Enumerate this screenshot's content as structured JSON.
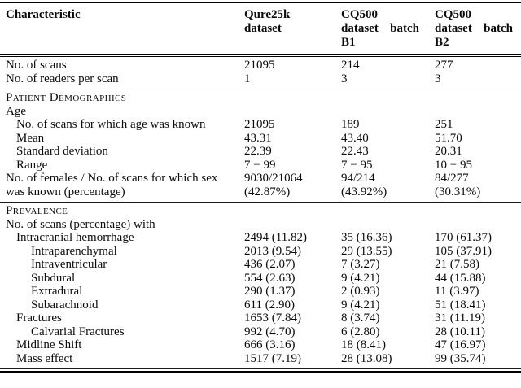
{
  "page": {
    "background_color": "#ffffff",
    "text_color": "#0b0b0b",
    "rule_color": "#000000"
  },
  "table": {
    "header": {
      "characteristic": "Characteristic",
      "columns": [
        {
          "name": "qure25k",
          "label": "Qure25k dataset",
          "lines": [
            "Qure25k",
            "dataset"
          ],
          "justify": false
        },
        {
          "name": "cq500-b1",
          "label": "CQ500 dataset batch B1",
          "lines": [
            "CQ500",
            "dataset batch",
            "B1"
          ],
          "justify": true
        },
        {
          "name": "cq500-b2",
          "label": "CQ500 dataset batch B2",
          "lines": [
            "CQ500",
            "dataset batch",
            "B2"
          ],
          "justify": true
        }
      ]
    },
    "sections": [
      {
        "title": "",
        "rows": [
          {
            "label": "No. of scans",
            "indent": 0,
            "values": [
              "21095",
              "214",
              "277"
            ]
          },
          {
            "label": "No. of readers per scan",
            "indent": 0,
            "values": [
              "1",
              "3",
              "3"
            ]
          }
        ]
      },
      {
        "title": "Patient Demographics",
        "rows": [
          {
            "label": "Age",
            "indent": 0,
            "values": [
              "",
              "",
              ""
            ]
          },
          {
            "label": "No. of scans for which age was known",
            "indent": 1,
            "values": [
              "21095",
              "189",
              "251"
            ]
          },
          {
            "label": "Mean",
            "indent": 1,
            "values": [
              "43.31",
              "43.40",
              "51.70"
            ]
          },
          {
            "label": "Standard deviation",
            "indent": 1,
            "values": [
              "22.39",
              "22.43",
              "20.31"
            ]
          },
          {
            "label": "Range",
            "indent": 1,
            "values": [
              "7 − 99",
              "7 − 95",
              "10 − 95"
            ]
          },
          {
            "label": "No. of females / No. of scans for which sex\nwas known (percentage)",
            "indent": 0,
            "values": [
              "9030/21064\n(42.87%)",
              "94/214\n(43.92%)",
              "84/277\n(30.31%)"
            ]
          }
        ]
      },
      {
        "title": "Prevalence",
        "rows": [
          {
            "label": "No. of scans (percentage) with",
            "indent": 0,
            "values": [
              "",
              "",
              ""
            ]
          },
          {
            "label": "Intracranial hemorrhage",
            "indent": 1,
            "values": [
              "2494 (11.82)",
              "35 (16.36)",
              "170 (61.37)"
            ]
          },
          {
            "label": "Intraparenchymal",
            "indent": 2,
            "values": [
              "2013 (9.54)",
              "29 (13.55)",
              "105 (37.91)"
            ]
          },
          {
            "label": "Intraventricular",
            "indent": 2,
            "values": [
              "436 (2.07)",
              "7 (3.27)",
              "21 (7.58)"
            ]
          },
          {
            "label": "Subdural",
            "indent": 2,
            "values": [
              "554 (2.63)",
              "9 (4.21)",
              "44 (15.88)"
            ]
          },
          {
            "label": "Extradural",
            "indent": 2,
            "values": [
              "290 (1.37)",
              "2 (0.93)",
              "11 (3.97)"
            ]
          },
          {
            "label": "Subarachnoid",
            "indent": 2,
            "values": [
              "611 (2.90)",
              "9 (4.21)",
              "51 (18.41)"
            ]
          },
          {
            "label": "Fractures",
            "indent": 1,
            "values": [
              "1653 (7.84)",
              "8 (3.74)",
              "31 (11.19)"
            ]
          },
          {
            "label": "Calvarial Fractures",
            "indent": 2,
            "values": [
              "992 (4.70)",
              "6 (2.80)",
              "28 (10.11)"
            ]
          },
          {
            "label": "Midline Shift",
            "indent": 1,
            "values": [
              "666 (3.16)",
              "18 (8.41)",
              "47 (16.97)"
            ]
          },
          {
            "label": "Mass effect",
            "indent": 1,
            "values": [
              "1517 (7.19)",
              "28 (13.08)",
              "99 (35.74)"
            ]
          }
        ]
      }
    ]
  }
}
